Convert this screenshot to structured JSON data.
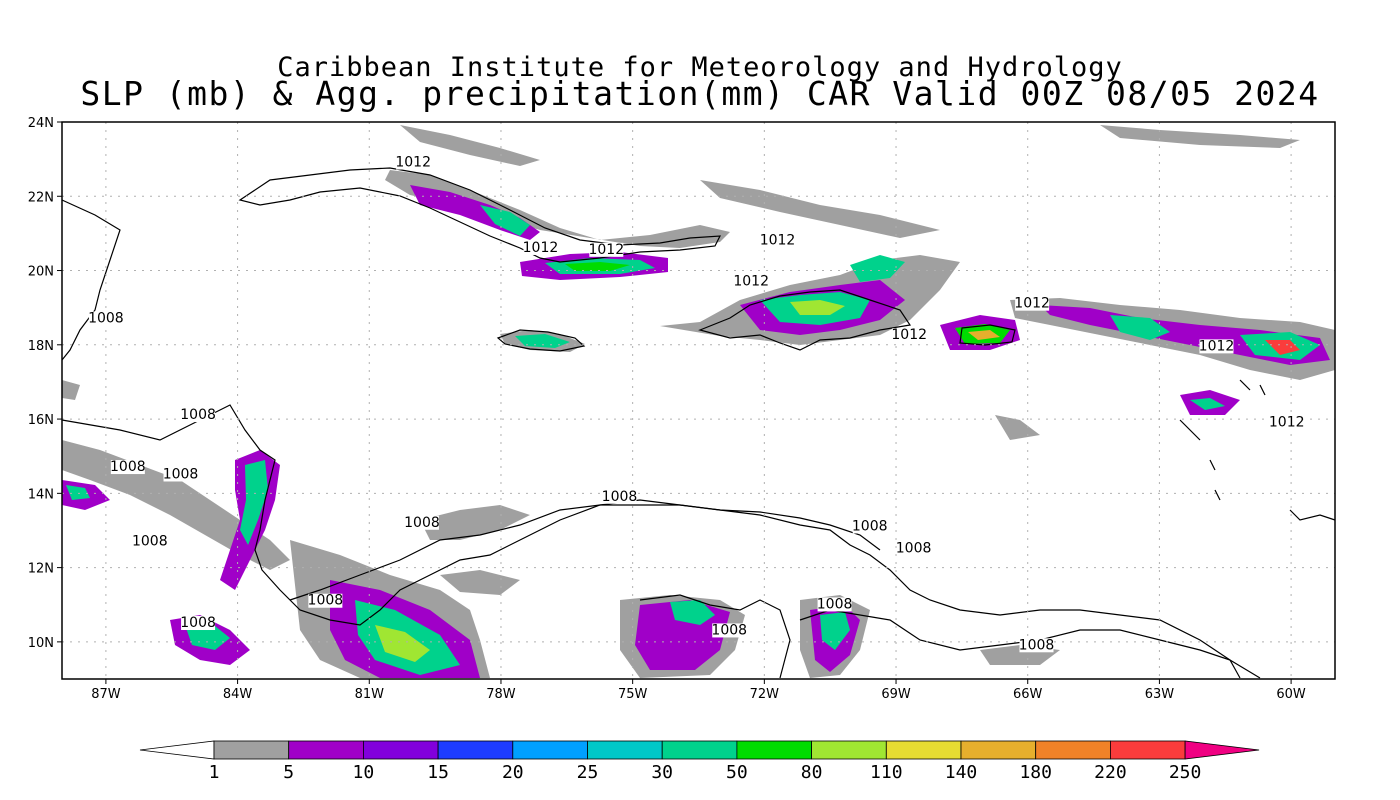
{
  "title": {
    "line1": "Caribbean Institute for Meteorology and Hydrology",
    "line2": "SLP (mb) & Agg. precipitation(mm) CAR Valid 00Z 08/05 2024"
  },
  "map": {
    "lon_range": [
      -88.0,
      -59.0
    ],
    "lat_range": [
      9.0,
      24.0
    ],
    "x_ticks": [
      {
        "lon": -87,
        "label": "87W"
      },
      {
        "lon": -84,
        "label": "84W"
      },
      {
        "lon": -81,
        "label": "81W"
      },
      {
        "lon": -78,
        "label": "78W"
      },
      {
        "lon": -75,
        "label": "75W"
      },
      {
        "lon": -72,
        "label": "72W"
      },
      {
        "lon": -69,
        "label": "69W"
      },
      {
        "lon": -66,
        "label": "66W"
      },
      {
        "lon": -63,
        "label": "63W"
      },
      {
        "lon": -60,
        "label": "60W"
      }
    ],
    "y_ticks": [
      {
        "lat": 24,
        "label": "24N"
      },
      {
        "lat": 22,
        "label": "22N"
      },
      {
        "lat": 20,
        "label": "20N"
      },
      {
        "lat": 18,
        "label": "18N"
      },
      {
        "lat": 16,
        "label": "16N"
      },
      {
        "lat": 14,
        "label": "14N"
      },
      {
        "lat": 12,
        "label": "12N"
      },
      {
        "lat": 10,
        "label": "10N"
      }
    ],
    "grid": true,
    "isobar_labels": [
      {
        "lon": -80.0,
        "lat": 22.8,
        "text": "1012"
      },
      {
        "lon": -77.1,
        "lat": 20.5,
        "text": "1012"
      },
      {
        "lon": -75.6,
        "lat": 20.45,
        "text": "1012"
      },
      {
        "lon": -71.7,
        "lat": 20.7,
        "text": "1012"
      },
      {
        "lon": -72.3,
        "lat": 19.6,
        "text": "1012"
      },
      {
        "lon": -68.7,
        "lat": 18.15,
        "text": "1012"
      },
      {
        "lon": -65.9,
        "lat": 19.0,
        "text": "1012"
      },
      {
        "lon": -61.7,
        "lat": 17.85,
        "text": "1012"
      },
      {
        "lon": -60.1,
        "lat": 15.8,
        "text": "1012"
      },
      {
        "lon": -87.0,
        "lat": 18.6,
        "text": "1008"
      },
      {
        "lon": -84.9,
        "lat": 16.0,
        "text": "1008"
      },
      {
        "lon": -86.5,
        "lat": 14.6,
        "text": "1008"
      },
      {
        "lon": -85.3,
        "lat": 14.4,
        "text": "1008"
      },
      {
        "lon": -86.0,
        "lat": 12.6,
        "text": "1008"
      },
      {
        "lon": -79.8,
        "lat": 13.1,
        "text": "1008"
      },
      {
        "lon": -75.3,
        "lat": 13.8,
        "text": "1008"
      },
      {
        "lon": -82.0,
        "lat": 11.0,
        "text": "1008"
      },
      {
        "lon": -84.9,
        "lat": 10.4,
        "text": "1008"
      },
      {
        "lon": -72.8,
        "lat": 10.2,
        "text": "1008"
      },
      {
        "lon": -69.6,
        "lat": 13.0,
        "text": "1008"
      },
      {
        "lon": -68.6,
        "lat": 12.4,
        "text": "1008"
      },
      {
        "lon": -70.4,
        "lat": 10.9,
        "text": "1008"
      },
      {
        "lon": -65.8,
        "lat": 9.8,
        "text": "1008"
      }
    ]
  },
  "colorbar": {
    "labels": [
      "1",
      "5",
      "10",
      "15",
      "20",
      "25",
      "30",
      "50",
      "80",
      "110",
      "140",
      "180",
      "220",
      "250"
    ],
    "colors": [
      "#a0a0a0",
      "#a000c8",
      "#8200dc",
      "#1e3cff",
      "#00a0ff",
      "#00c8c8",
      "#00d28c",
      "#00dc00",
      "#a0e632",
      "#e6dc32",
      "#e6af2d",
      "#f08228",
      "#fa3c3c",
      "#f00082"
    ]
  },
  "colors": {
    "coastline": "#000000",
    "isobar": "#000000",
    "frame": "#000000",
    "background": "#ffffff"
  }
}
